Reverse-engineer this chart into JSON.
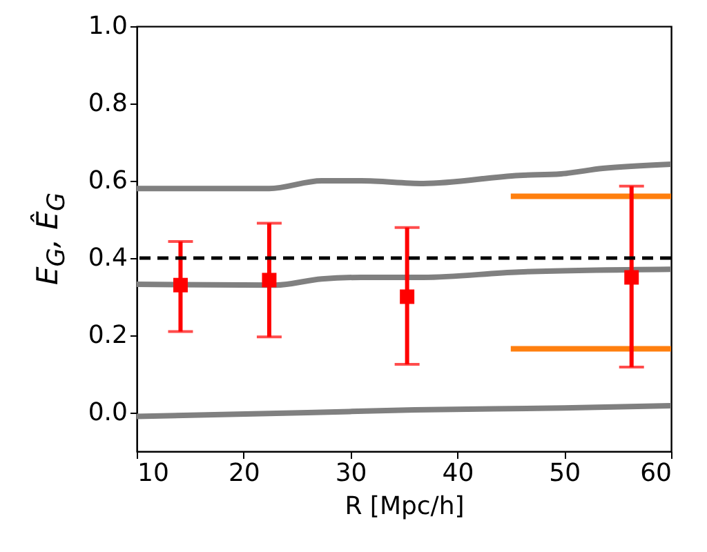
{
  "chart_data": {
    "type": "line",
    "xlabel": "R [Mpc/h]",
    "ylabel": "E$_{G}$, Ê$_{G}$",
    "xlim": [
      10,
      60
    ],
    "ylim": [
      -0.1,
      1.0
    ],
    "xticks": [
      10,
      20,
      30,
      40,
      50,
      60
    ],
    "yticks": [
      {
        "value": 0,
        "label": "0.0"
      },
      0.2,
      0.4,
      0.6,
      0.8,
      {
        "value": 1,
        "label": "1.0"
      }
    ],
    "grid": false,
    "series": [
      {
        "color": "#ff7f0e",
        "line_style": "solid",
        "x": [
          45,
          60
        ],
        "values": [
          0.56,
          0.56
        ]
      },
      {
        "color": "#ff7f0e",
        "line_style": "solid",
        "x": [
          45,
          60
        ],
        "values": [
          0.165,
          0.165
        ]
      },
      {
        "color": "#808080",
        "line_style": "solid",
        "x": [
          10,
          22.4,
          27.3,
          31,
          36.8,
          45.8,
          49.7,
          53.6,
          60
        ],
        "values": [
          0.58,
          0.58,
          0.6,
          0.6,
          0.593,
          0.614,
          0.618,
          0.632,
          0.643
        ]
      },
      {
        "color": "#808080",
        "line_style": "solid",
        "x": [
          10,
          23,
          27.3,
          31,
          36.8,
          45.8,
          60
        ],
        "values": [
          0.332,
          0.33,
          0.346,
          0.35,
          0.35,
          0.364,
          0.371
        ]
      },
      {
        "color": "#808080",
        "line_style": "solid",
        "x": [
          10,
          26,
          36,
          50,
          60
        ],
        "values": [
          -0.01,
          0.0,
          0.007,
          0.012,
          0.018
        ]
      },
      {
        "type": "scatter",
        "color": "#ff0000",
        "marker": "square",
        "x": [
          14.1,
          22.4,
          35.3,
          56.3
        ],
        "values": [
          0.33,
          0.343,
          0.3,
          0.35
        ],
        "errors": [
          [
            0.21,
            0.443
          ],
          [
            0.196,
            0.49
          ],
          [
            0.125,
            0.479
          ],
          [
            0.118,
            0.586
          ]
        ]
      }
    ],
    "ref_lines": [
      {
        "axis": "y",
        "value": 0.4,
        "color": "#000000",
        "line_style": "dashed"
      }
    ]
  }
}
